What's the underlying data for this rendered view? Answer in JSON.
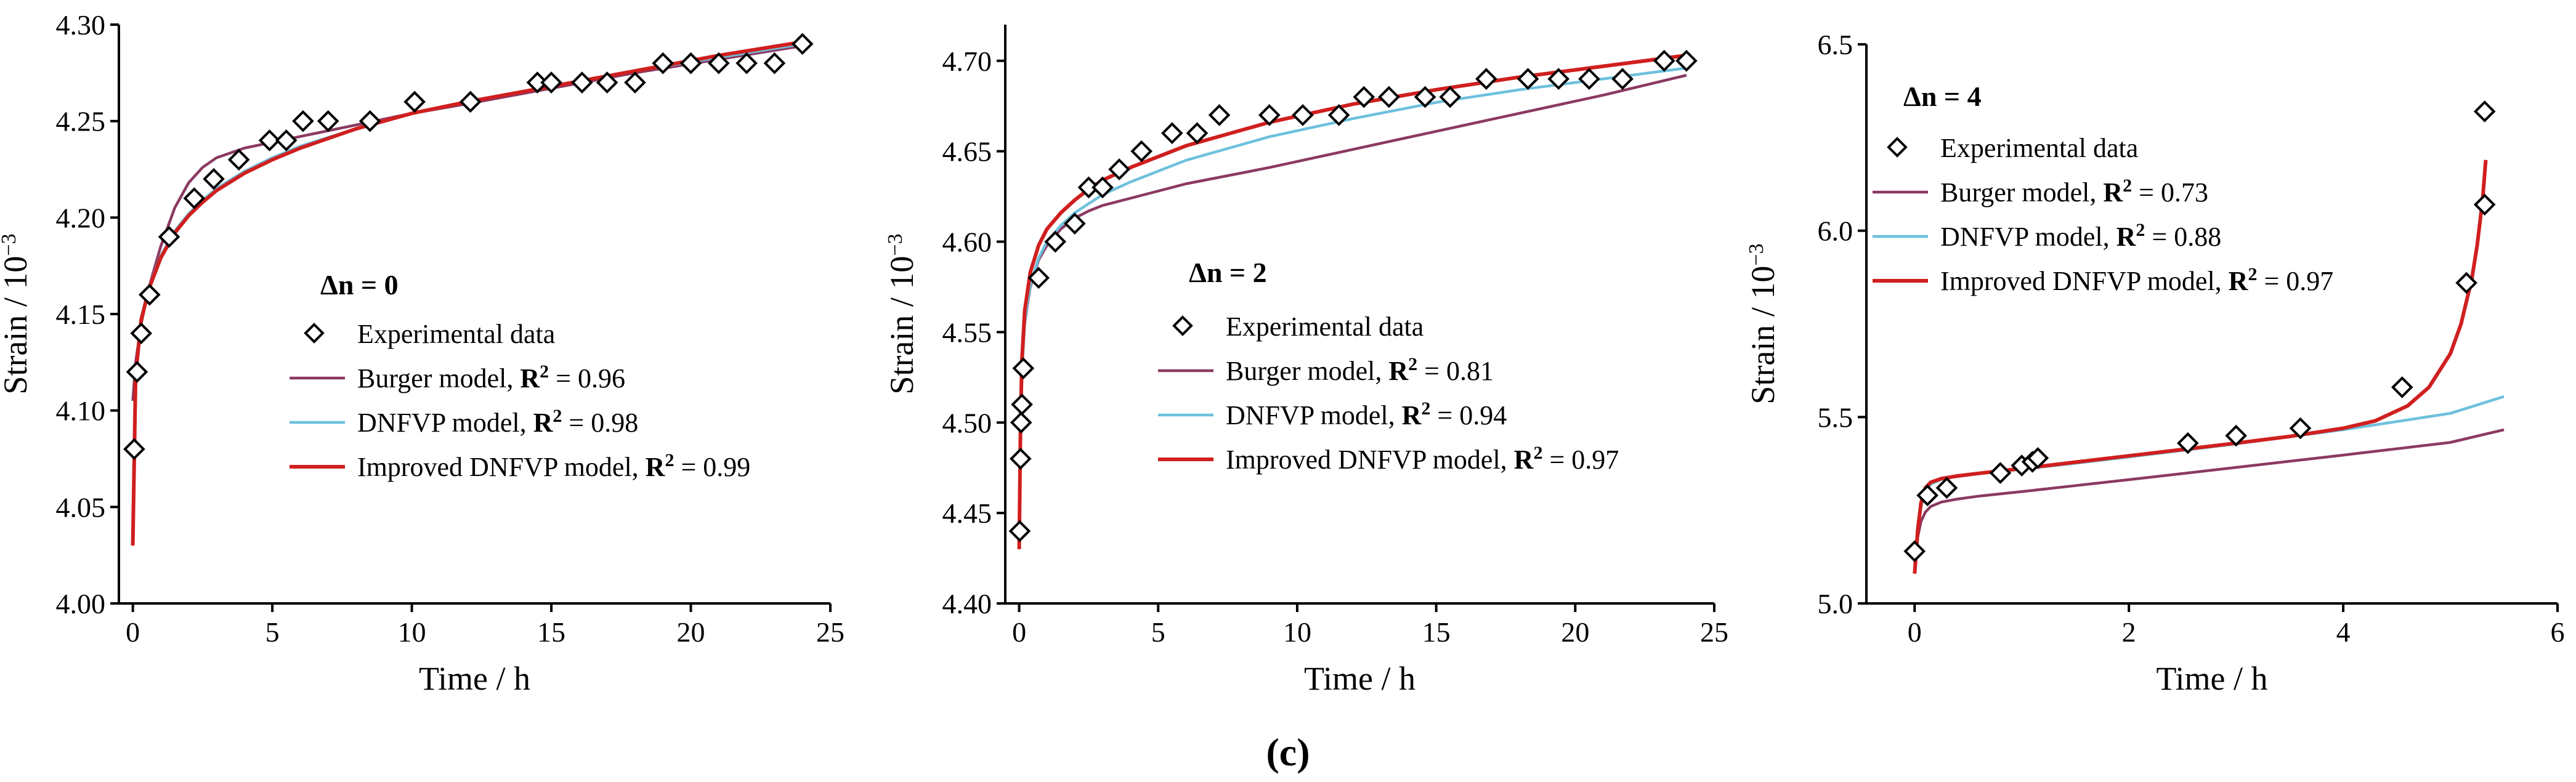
{
  "figure_label": "(c)",
  "legend_labels": {
    "experimental": "Experimental data",
    "burger": "Burger model, ",
    "dnfvp": "DNFVP model, ",
    "improved": "Improved DNFVP model, "
  },
  "colors": {
    "burger": "#8B3A62",
    "dnfvp": "#6EC1DD",
    "improved": "#D01F1F",
    "markers": "#000000"
  },
  "chart_data": [
    {
      "type": "scatter+line",
      "panel_label": "Δn = 0",
      "xlabel": "Time / h",
      "ylabel": "Strain / 10",
      "ylabel_exponent": "−3",
      "xlim": [
        -0.5,
        25
      ],
      "ylim": [
        4.0,
        4.3
      ],
      "xticks": [
        0,
        5,
        10,
        15,
        20,
        25
      ],
      "yticks": [
        4.0,
        4.05,
        4.1,
        4.15,
        4.2,
        4.25,
        4.3
      ],
      "ytick_labels": [
        "4.00",
        "4.05",
        "4.10",
        "4.15",
        "4.20",
        "4.25",
        "4.30"
      ],
      "legend_r2": {
        "burger": "0.96",
        "dnfvp": "0.98",
        "improved": "0.99"
      },
      "experimental": [
        [
          0.05,
          4.08
        ],
        [
          0.15,
          4.12
        ],
        [
          0.3,
          4.14
        ],
        [
          0.6,
          4.16
        ],
        [
          1.3,
          4.19
        ],
        [
          2.2,
          4.21
        ],
        [
          2.9,
          4.22
        ],
        [
          3.8,
          4.23
        ],
        [
          4.9,
          4.24
        ],
        [
          5.5,
          4.24
        ],
        [
          6.1,
          4.25
        ],
        [
          7.0,
          4.25
        ],
        [
          8.5,
          4.25
        ],
        [
          10.1,
          4.26
        ],
        [
          12.1,
          4.26
        ],
        [
          14.5,
          4.27
        ],
        [
          15.0,
          4.27
        ],
        [
          16.1,
          4.27
        ],
        [
          17.0,
          4.27
        ],
        [
          18.0,
          4.27
        ],
        [
          19.0,
          4.28
        ],
        [
          20.0,
          4.28
        ],
        [
          21.0,
          4.28
        ],
        [
          22.0,
          4.28
        ],
        [
          23.0,
          4.28
        ],
        [
          24.0,
          4.29
        ]
      ],
      "series": [
        {
          "name": "burger",
          "x": [
            0.0,
            0.1,
            0.3,
            0.6,
            1.0,
            1.5,
            2.0,
            2.5,
            3.0,
            4.0,
            5.0,
            6.0,
            8.0,
            10.0,
            12.0,
            15.0,
            18.0,
            21.0,
            24.0
          ],
          "y": [
            4.105,
            4.125,
            4.145,
            4.165,
            4.185,
            4.205,
            4.218,
            4.226,
            4.231,
            4.236,
            4.239,
            4.242,
            4.248,
            4.254,
            4.259,
            4.267,
            4.275,
            4.282,
            4.289
          ]
        },
        {
          "name": "dnfvp",
          "x": [
            0.0,
            0.1,
            0.3,
            0.6,
            1.0,
            1.5,
            2.0,
            2.5,
            3.0,
            4.0,
            5.0,
            6.0,
            8.0,
            10.0,
            12.0,
            15.0,
            18.0,
            21.0,
            24.0
          ],
          "y": [
            4.04,
            4.12,
            4.148,
            4.165,
            4.18,
            4.193,
            4.202,
            4.209,
            4.215,
            4.224,
            4.231,
            4.237,
            4.246,
            4.254,
            4.26,
            4.268,
            4.276,
            4.283,
            4.29
          ]
        },
        {
          "name": "improved",
          "x": [
            0.0,
            0.1,
            0.3,
            0.6,
            1.0,
            1.5,
            2.0,
            2.5,
            3.0,
            4.0,
            5.0,
            6.0,
            8.0,
            10.0,
            12.0,
            15.0,
            18.0,
            21.0,
            24.0
          ],
          "y": [
            4.03,
            4.118,
            4.147,
            4.164,
            4.179,
            4.192,
            4.201,
            4.208,
            4.214,
            4.223,
            4.23,
            4.236,
            4.246,
            4.254,
            4.26,
            4.268,
            4.276,
            4.284,
            4.291
          ]
        }
      ]
    },
    {
      "type": "scatter+line",
      "panel_label": "Δn = 2",
      "xlabel": "Time / h",
      "ylabel": "Strain / 10",
      "ylabel_exponent": "−3",
      "xlim": [
        -0.5,
        25
      ],
      "ylim": [
        4.4,
        4.72
      ],
      "xticks": [
        0,
        5,
        10,
        15,
        20,
        25
      ],
      "yticks": [
        4.4,
        4.45,
        4.5,
        4.55,
        4.6,
        4.65,
        4.7
      ],
      "ytick_labels": [
        "4.40",
        "4.45",
        "4.50",
        "4.55",
        "4.60",
        "4.65",
        "4.70"
      ],
      "legend_r2": {
        "burger": "0.81",
        "dnfvp": "0.94",
        "improved": "0.97"
      },
      "experimental": [
        [
          0.02,
          4.44
        ],
        [
          0.05,
          4.48
        ],
        [
          0.07,
          4.5
        ],
        [
          0.1,
          4.51
        ],
        [
          0.15,
          4.53
        ],
        [
          0.7,
          4.58
        ],
        [
          1.3,
          4.6
        ],
        [
          2.0,
          4.61
        ],
        [
          2.5,
          4.63
        ],
        [
          3.0,
          4.63
        ],
        [
          3.6,
          4.64
        ],
        [
          4.4,
          4.65
        ],
        [
          5.5,
          4.66
        ],
        [
          6.4,
          4.66
        ],
        [
          7.2,
          4.67
        ],
        [
          9.0,
          4.67
        ],
        [
          10.2,
          4.67
        ],
        [
          11.5,
          4.67
        ],
        [
          12.4,
          4.68
        ],
        [
          13.3,
          4.68
        ],
        [
          14.6,
          4.68
        ],
        [
          15.5,
          4.68
        ],
        [
          16.8,
          4.69
        ],
        [
          18.3,
          4.69
        ],
        [
          19.4,
          4.69
        ],
        [
          20.5,
          4.69
        ],
        [
          21.7,
          4.69
        ],
        [
          23.2,
          4.7
        ],
        [
          24.0,
          4.7
        ]
      ],
      "series": [
        {
          "name": "burger",
          "x": [
            0.0,
            0.05,
            0.1,
            0.2,
            0.4,
            0.7,
            1.0,
            1.5,
            2.0,
            2.5,
            3.0,
            4.0,
            6.0,
            9.0,
            12.0,
            15.0,
            18.0,
            21.0,
            24.0
          ],
          "y": [
            4.44,
            4.5,
            4.53,
            4.555,
            4.575,
            4.59,
            4.598,
            4.607,
            4.613,
            4.617,
            4.62,
            4.624,
            4.632,
            4.641,
            4.651,
            4.661,
            4.671,
            4.681,
            4.692
          ]
        },
        {
          "name": "dnfvp",
          "x": [
            0.0,
            0.05,
            0.1,
            0.2,
            0.4,
            0.7,
            1.0,
            1.5,
            2.0,
            2.5,
            3.0,
            4.0,
            6.0,
            9.0,
            12.0,
            15.0,
            18.0,
            21.0,
            24.0
          ],
          "y": [
            4.44,
            4.5,
            4.53,
            4.556,
            4.576,
            4.591,
            4.6,
            4.609,
            4.616,
            4.621,
            4.626,
            4.633,
            4.645,
            4.658,
            4.668,
            4.677,
            4.684,
            4.69,
            4.696
          ]
        },
        {
          "name": "improved",
          "x": [
            0.0,
            0.05,
            0.1,
            0.2,
            0.4,
            0.7,
            1.0,
            1.5,
            2.0,
            2.5,
            3.0,
            4.0,
            6.0,
            9.0,
            12.0,
            15.0,
            18.0,
            21.0,
            24.0
          ],
          "y": [
            4.43,
            4.5,
            4.535,
            4.562,
            4.583,
            4.598,
            4.607,
            4.616,
            4.623,
            4.629,
            4.634,
            4.641,
            4.653,
            4.666,
            4.676,
            4.684,
            4.691,
            4.697,
            4.703
          ]
        }
      ]
    },
    {
      "type": "scatter+line",
      "panel_label": "Δn = 4",
      "xlabel": "Time / h",
      "ylabel": "Strain / 10",
      "ylabel_exponent": "−3",
      "xlim": [
        -0.45,
        6
      ],
      "ylim": [
        5.0,
        6.5
      ],
      "xticks": [
        0,
        2,
        4,
        6
      ],
      "yticks": [
        5.0,
        5.5,
        6.0,
        6.5
      ],
      "ytick_labels": [
        "5.0",
        "5.5",
        "6.0",
        "6.5"
      ],
      "legend_r2": {
        "burger": "0.73",
        "dnfvp": "0.88",
        "improved": "0.97"
      },
      "experimental": [
        [
          0.0,
          5.14
        ],
        [
          0.12,
          5.29
        ],
        [
          0.3,
          5.31
        ],
        [
          0.8,
          5.35
        ],
        [
          1.0,
          5.37
        ],
        [
          1.1,
          5.38
        ],
        [
          1.15,
          5.39
        ],
        [
          2.55,
          5.43
        ],
        [
          3.0,
          5.45
        ],
        [
          3.6,
          5.47
        ],
        [
          4.55,
          5.58
        ],
        [
          5.15,
          5.86
        ],
        [
          5.32,
          6.07
        ],
        [
          5.32,
          6.32
        ]
      ],
      "series": [
        {
          "name": "burger",
          "x": [
            0.0,
            0.03,
            0.06,
            0.1,
            0.15,
            0.25,
            0.4,
            0.6,
            1.0,
            1.5,
            2.0,
            3.0,
            4.0,
            5.0,
            5.5
          ],
          "y": [
            5.09,
            5.18,
            5.22,
            5.245,
            5.26,
            5.272,
            5.28,
            5.288,
            5.3,
            5.316,
            5.332,
            5.365,
            5.398,
            5.432,
            5.466
          ]
        },
        {
          "name": "dnfvp",
          "x": [
            0.0,
            0.03,
            0.06,
            0.1,
            0.15,
            0.25,
            0.4,
            0.6,
            1.0,
            1.5,
            2.0,
            3.0,
            4.0,
            5.0,
            5.5
          ],
          "y": [
            5.09,
            5.2,
            5.26,
            5.3,
            5.32,
            5.333,
            5.341,
            5.348,
            5.36,
            5.376,
            5.393,
            5.428,
            5.466,
            5.51,
            5.555
          ]
        },
        {
          "name": "improved",
          "x": [
            0.0,
            0.03,
            0.06,
            0.1,
            0.15,
            0.25,
            0.4,
            0.6,
            1.0,
            1.5,
            2.0,
            2.5,
            3.0,
            3.5,
            4.0,
            4.3,
            4.6,
            4.8,
            5.0,
            5.1,
            5.2,
            5.25,
            5.3,
            5.33
          ],
          "y": [
            5.08,
            5.2,
            5.27,
            5.31,
            5.325,
            5.335,
            5.342,
            5.349,
            5.362,
            5.379,
            5.396,
            5.413,
            5.43,
            5.448,
            5.47,
            5.49,
            5.53,
            5.58,
            5.67,
            5.75,
            5.87,
            5.96,
            6.08,
            6.19
          ]
        }
      ]
    }
  ]
}
